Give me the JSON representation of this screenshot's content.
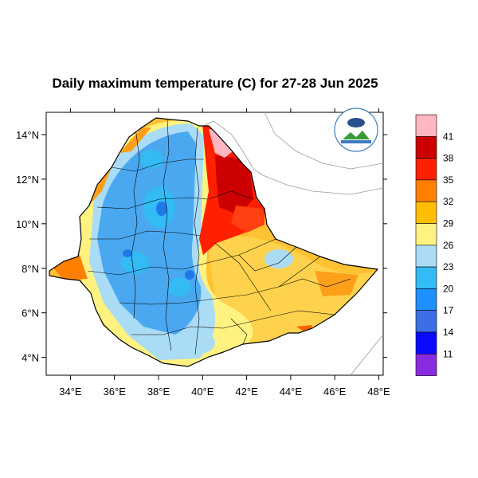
{
  "title": "Daily maximum temperature (C) for 27-28 Jun 2025",
  "axes": {
    "lon_ticks": [
      "34°E",
      "36°E",
      "38°E",
      "40°E",
      "42°E",
      "44°E",
      "46°E",
      "48°E"
    ],
    "lat_ticks": [
      "14°N",
      "12°N",
      "10°N",
      "8°N",
      "6°N",
      "4°N"
    ],
    "lon_range": [
      32.9,
      48.2
    ],
    "lat_range": [
      3.2,
      15.0
    ]
  },
  "colorbar": {
    "labels": [
      "41",
      "38",
      "35",
      "32",
      "29",
      "26",
      "23",
      "20",
      "17",
      "14",
      "11"
    ],
    "colors": [
      "#ffb6c1",
      "#cc0000",
      "#ff2000",
      "#ff8000",
      "#ffbf00",
      "#fff280",
      "#aadcf5",
      "#33bbf5",
      "#1e90ff",
      "#3c6ee6",
      "#0a0aff",
      "#8a2be2"
    ]
  },
  "colors": {
    "land_background": "#ffc233",
    "highland": "#4aa8f0",
    "afar_hot": "#d40000"
  },
  "logo_icon": "ethiopian-meteorology-institute-logo"
}
